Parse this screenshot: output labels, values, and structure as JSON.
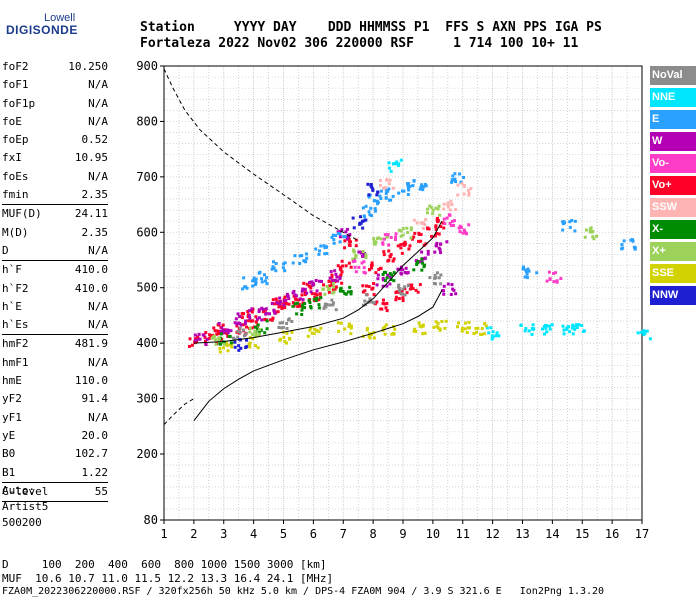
{
  "logo": {
    "top": "Lowell",
    "main": "DIGISONDE"
  },
  "header": {
    "line1": "Station     YYYY DAY    DDD HHMMSS P1  FFS S AXN PPS IGA PS",
    "line2": "Fortaleza 2022 Nov02 306 220000 RSF     1 714 100 10+ 11"
  },
  "params": [
    {
      "name": "foF2",
      "value": "10.250"
    },
    {
      "name": "foF1",
      "value": "N/A"
    },
    {
      "name": "foF1p",
      "value": "N/A"
    },
    {
      "name": "foE",
      "value": "N/A"
    },
    {
      "name": "foEp",
      "value": "0.52"
    },
    {
      "name": "fxI",
      "value": "10.95"
    },
    {
      "name": "foEs",
      "value": "N/A"
    },
    {
      "name": "fmin",
      "value": "2.35"
    },
    {
      "sep": true
    },
    {
      "name": "MUF(D)",
      "value": "24.11"
    },
    {
      "name": "M(D)",
      "value": "2.35"
    },
    {
      "name": "D",
      "value": "N/A"
    },
    {
      "sep": true
    },
    {
      "name": "h`F",
      "value": "410.0"
    },
    {
      "name": "h`F2",
      "value": "410.0"
    },
    {
      "name": "h`E",
      "value": "N/A"
    },
    {
      "name": "h`Es",
      "value": "N/A"
    },
    {
      "sep": true
    },
    {
      "name": "hmF2",
      "value": "481.9"
    },
    {
      "name": "hmF1",
      "value": "N/A"
    },
    {
      "name": "hmE",
      "value": "110.0"
    },
    {
      "name": "yF2",
      "value": "91.4"
    },
    {
      "name": "yF1",
      "value": "N/A"
    },
    {
      "name": "yE",
      "value": "20.0"
    },
    {
      "name": "B0",
      "value": "102.7"
    },
    {
      "name": "B1",
      "value": "1.22"
    },
    {
      "sep": true
    },
    {
      "name": "C-level",
      "value": "55"
    },
    {
      "sep": true
    }
  ],
  "auto": [
    "Auto:",
    "Artist5",
    "500200"
  ],
  "footer": {
    "line1": "D     100  200  400  600  800 1000 1500 3000 [km]",
    "line2": "MUF  10.6 10.7 11.0 11.5 12.2 13.3 16.4 24.1 [MHz]",
    "line3": "FZA0M_2022306220000.RSF / 320fx256h 50 kHz 5.0 km / DPS-4 FZA0M 904 / 3.9 S 321.6 E   Ion2Png 1.3.20"
  },
  "legend": [
    {
      "label": "NoVal",
      "color": "#8c8c8c"
    },
    {
      "label": "NNE",
      "color": "#00e6ff"
    },
    {
      "label": "E",
      "color": "#2aa0ff"
    },
    {
      "label": "W",
      "color": "#b400b4"
    },
    {
      "label": "Vo-",
      "color": "#ff3cc8"
    },
    {
      "label": "Vo+",
      "color": "#ff0028"
    },
    {
      "label": "SSW",
      "color": "#ffb4b4"
    },
    {
      "label": "X-",
      "color": "#008c00"
    },
    {
      "label": "X+",
      "color": "#9cd25a"
    },
    {
      "label": "SSE",
      "color": "#d2d200"
    },
    {
      "label": "NNW",
      "color": "#1e1ed2"
    }
  ],
  "chart_data": {
    "type": "scatter",
    "x_ticks": [
      1,
      2,
      3,
      4,
      5,
      6,
      7,
      8,
      9,
      10,
      11,
      12,
      13,
      14,
      15,
      16,
      17
    ],
    "y_ticks": [
      80,
      200,
      300,
      400,
      500,
      600,
      700,
      800,
      900
    ],
    "xlim": [
      1,
      17
    ],
    "y_axis": "piecewise: 80 at bottom, 200 to 900 linear",
    "grid": true,
    "series": [
      {
        "name": "Vo+",
        "color": "#ff0028",
        "points": [
          [
            2.0,
            405
          ],
          [
            2.5,
            412
          ],
          [
            3.0,
            418
          ],
          [
            3.5,
            428
          ],
          [
            4.0,
            440
          ],
          [
            4.5,
            452
          ],
          [
            5.0,
            465
          ],
          [
            5.5,
            478
          ],
          [
            6.0,
            490
          ],
          [
            6.5,
            505
          ],
          [
            7.0,
            540
          ],
          [
            7.2,
            580
          ],
          [
            7.8,
            500
          ],
          [
            8.0,
            540
          ],
          [
            8.5,
            560
          ],
          [
            9.0,
            575
          ],
          [
            9.5,
            590
          ],
          [
            10.0,
            605
          ],
          [
            10.3,
            620
          ],
          [
            2.8,
            430
          ],
          [
            3.8,
            455
          ],
          [
            4.8,
            480
          ],
          [
            5.8,
            500
          ],
          [
            6.8,
            515
          ],
          [
            8.2,
            470
          ],
          [
            8.8,
            490
          ],
          [
            9.3,
            500
          ]
        ]
      },
      {
        "name": "W",
        "color": "#b400b4",
        "points": [
          [
            2.2,
            410
          ],
          [
            3.0,
            430
          ],
          [
            4.0,
            455
          ],
          [
            5.0,
            480
          ],
          [
            6.0,
            505
          ],
          [
            6.7,
            525
          ],
          [
            7.0,
            600
          ],
          [
            7.5,
            560
          ],
          [
            8.3,
            515
          ],
          [
            9.0,
            530
          ],
          [
            9.6,
            560
          ],
          [
            10.2,
            575
          ],
          [
            10.5,
            500
          ],
          [
            3.5,
            445
          ],
          [
            4.5,
            465
          ],
          [
            5.5,
            490
          ]
        ]
      },
      {
        "name": "E",
        "color": "#2aa0ff",
        "points": [
          [
            3.8,
            510
          ],
          [
            4.2,
            520
          ],
          [
            4.8,
            540
          ],
          [
            5.5,
            555
          ],
          [
            6.2,
            570
          ],
          [
            6.8,
            590
          ],
          [
            7.8,
            640
          ],
          [
            8.0,
            660
          ],
          [
            8.4,
            670
          ],
          [
            9.0,
            680
          ],
          [
            9.5,
            690
          ],
          [
            10.8,
            700
          ],
          [
            13.2,
            530
          ],
          [
            14.5,
            615
          ],
          [
            16.5,
            580
          ]
        ]
      },
      {
        "name": "NNE",
        "color": "#00e6ff",
        "points": [
          [
            8.7,
            722
          ],
          [
            12.0,
            420
          ],
          [
            13.1,
            425
          ],
          [
            13.8,
            428
          ],
          [
            14.5,
            430
          ],
          [
            14.8,
            428
          ],
          [
            17.0,
            420
          ]
        ]
      },
      {
        "name": "SSE",
        "color": "#d2d200",
        "points": [
          [
            3.0,
            395
          ],
          [
            4.0,
            405
          ],
          [
            5.0,
            412
          ],
          [
            6.0,
            420
          ],
          [
            7.0,
            430
          ],
          [
            7.8,
            420
          ],
          [
            8.5,
            425
          ],
          [
            9.5,
            430
          ],
          [
            10.2,
            432
          ],
          [
            11.0,
            430
          ],
          [
            11.5,
            428
          ]
        ]
      },
      {
        "name": "X-",
        "color": "#008c00",
        "points": [
          [
            3.0,
            410
          ],
          [
            4.2,
            432
          ],
          [
            5.5,
            465
          ],
          [
            6.0,
            475
          ],
          [
            7.0,
            500
          ],
          [
            8.5,
            520
          ],
          [
            9.5,
            545
          ]
        ]
      },
      {
        "name": "X+",
        "color": "#9cd25a",
        "points": [
          [
            2.8,
            405
          ],
          [
            4.0,
            425
          ],
          [
            6.5,
            500
          ],
          [
            7.5,
            560
          ],
          [
            8.2,
            590
          ],
          [
            9.0,
            600
          ],
          [
            10.0,
            640
          ],
          [
            15.2,
            600
          ]
        ]
      },
      {
        "name": "SSW",
        "color": "#ffb4b4",
        "points": [
          [
            8.4,
            690
          ],
          [
            9.5,
            620
          ],
          [
            10.5,
            650
          ],
          [
            11.0,
            680
          ]
        ]
      },
      {
        "name": "Vo-",
        "color": "#ff3cc8",
        "points": [
          [
            7.5,
            540
          ],
          [
            8.5,
            590
          ],
          [
            10.5,
            625
          ],
          [
            14.0,
            520
          ],
          [
            11.0,
            610
          ]
        ]
      },
      {
        "name": "NoVal",
        "color": "#8c8c8c",
        "points": [
          [
            3.5,
            420
          ],
          [
            5.0,
            440
          ],
          [
            6.5,
            470
          ],
          [
            7.8,
            480
          ],
          [
            9.0,
            500
          ],
          [
            10.0,
            520
          ]
        ]
      },
      {
        "name": "NNW",
        "color": "#1e1ed2",
        "points": [
          [
            7.5,
            620
          ],
          [
            8.0,
            680
          ],
          [
            3.5,
            400
          ]
        ]
      }
    ],
    "curve_solid_1": [
      [
        2.0,
        260
      ],
      [
        2.5,
        295
      ],
      [
        3.0,
        318
      ],
      [
        3.5,
        335
      ],
      [
        4.0,
        350
      ],
      [
        5.0,
        370
      ],
      [
        6.0,
        388
      ],
      [
        7.0,
        402
      ],
      [
        8.0,
        418
      ],
      [
        9.0,
        435
      ],
      [
        9.5,
        448
      ],
      [
        10.0,
        465
      ],
      [
        10.3,
        495
      ]
    ],
    "curve_solid_2": [
      [
        2.0,
        400
      ],
      [
        3.0,
        403
      ],
      [
        4.0,
        410
      ],
      [
        5.0,
        420
      ],
      [
        6.0,
        430
      ],
      [
        7.0,
        445
      ],
      [
        7.5,
        460
      ],
      [
        8.0,
        480
      ],
      [
        8.5,
        510
      ],
      [
        9.0,
        540
      ],
      [
        9.5,
        565
      ],
      [
        10.0,
        590
      ],
      [
        10.3,
        620
      ]
    ],
    "curve_dashed_high": [
      [
        1.0,
        895
      ],
      [
        1.3,
        860
      ],
      [
        1.7,
        820
      ],
      [
        2.2,
        785
      ],
      [
        3.0,
        745
      ],
      [
        4.0,
        705
      ],
      [
        5.0,
        668
      ],
      [
        6.0,
        630
      ],
      [
        7.0,
        600
      ],
      [
        7.5,
        585
      ]
    ],
    "curve_dashed_low": [
      [
        1.0,
        253
      ],
      [
        1.3,
        270
      ],
      [
        1.7,
        290
      ],
      [
        2.0,
        300
      ]
    ]
  }
}
